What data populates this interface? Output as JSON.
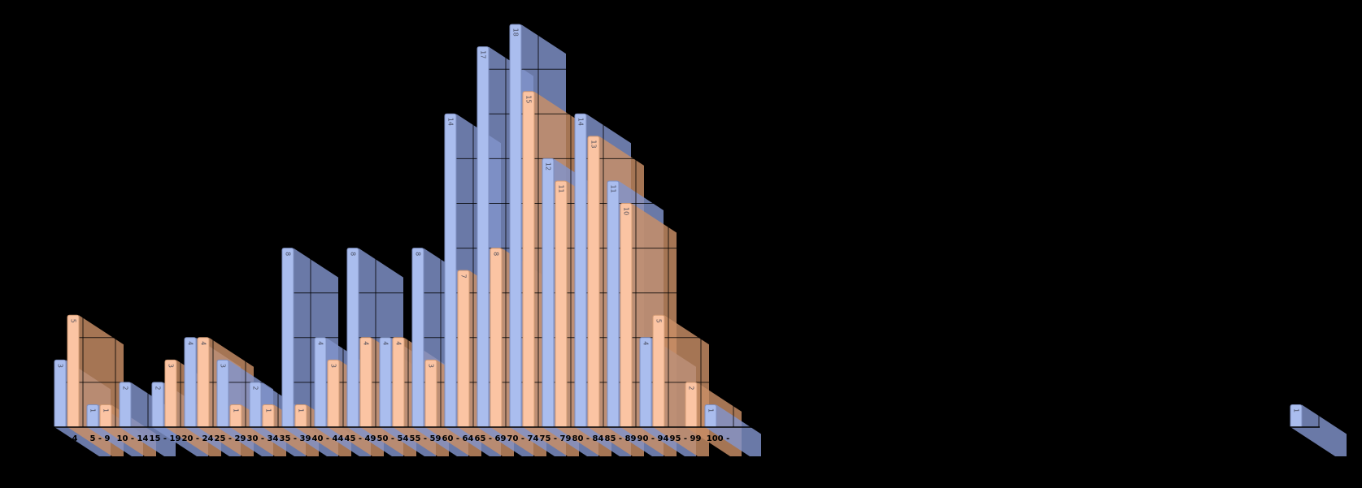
{
  "chart_data": {
    "type": "bar",
    "title": "",
    "subtitle": "",
    "legend_position": "none",
    "background_color": "#000000",
    "style": "3d-depth-bars",
    "categories": [
      "0 - 4",
      "5 - 9",
      "10 - 14",
      "15 - 19",
      "20 - 24",
      "25 - 29",
      "30 - 34",
      "35 - 39",
      "40 - 44",
      "45 - 49",
      "50 - 54",
      "55 - 59",
      "60 - 64",
      "65 - 69",
      "70 - 74",
      "75 - 79",
      "80 - 84",
      "85 - 89",
      "90 - 94",
      "95 - 99",
      "100 -"
    ],
    "series": [
      {
        "name": "blue",
        "color": "#aabdee",
        "border_color": "#7e8fc0",
        "depth_color": "#8194cc",
        "values": [
          3,
          1,
          2,
          2,
          4,
          3,
          2,
          8,
          4,
          8,
          4,
          8,
          14,
          17,
          18,
          12,
          14,
          11,
          4,
          0,
          1
        ]
      },
      {
        "name": "orange",
        "color": "#fbc4a3",
        "border_color": "#d39b74",
        "depth_color": "#c98f66",
        "values": [
          5,
          1,
          0,
          3,
          4,
          1,
          1,
          1,
          3,
          4,
          4,
          3,
          7,
          8,
          15,
          11,
          13,
          10,
          5,
          2,
          0
        ]
      }
    ],
    "extra_bars": [
      {
        "category_index": 38,
        "category_label": "",
        "series": "blue",
        "value": 1
      }
    ],
    "bar_value_labels_shown": true,
    "value_label_rotation_deg": 90,
    "ylim": [
      0,
      18
    ],
    "grid": {
      "horizontal_interval": 2,
      "vertical_lines": "every category boundary",
      "line_color": "#000000"
    },
    "axis": {
      "x_label_color": "#000000",
      "baseline_color": "#000000"
    }
  }
}
